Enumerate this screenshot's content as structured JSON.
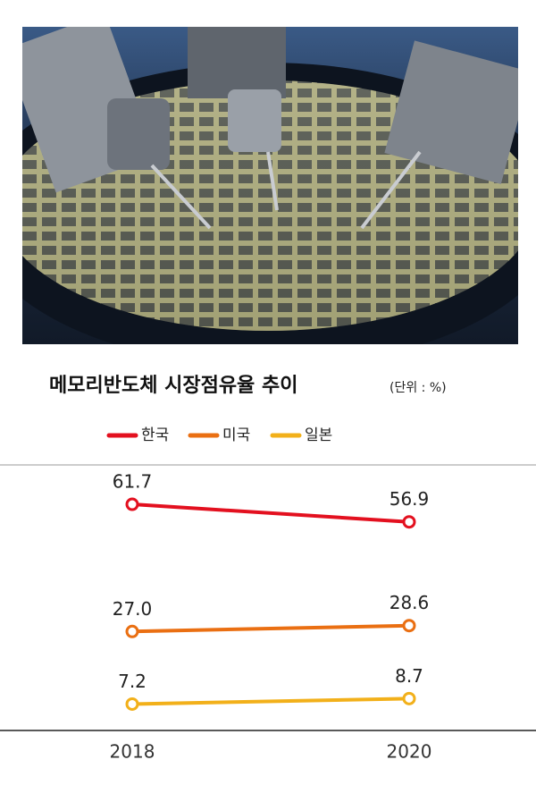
{
  "chart_data": {
    "type": "line",
    "title": "메모리반도체 시장점유율 추이",
    "subtitle": "(단위 : %)",
    "categories": [
      "2018",
      "2020"
    ],
    "series": [
      {
        "name": "한국",
        "color": "#e3101f",
        "values": [
          61.7,
          56.9
        ],
        "value_labels": [
          "61.7",
          "56.9"
        ]
      },
      {
        "name": "미국",
        "color": "#ea6f12",
        "values": [
          27.0,
          28.6
        ],
        "value_labels": [
          "27.0",
          "28.6"
        ]
      },
      {
        "name": "일본",
        "color": "#f2b01a",
        "values": [
          7.2,
          8.7
        ],
        "value_labels": [
          "7.2",
          "8.7"
        ]
      }
    ],
    "ylim": [
      0,
      70
    ]
  }
}
